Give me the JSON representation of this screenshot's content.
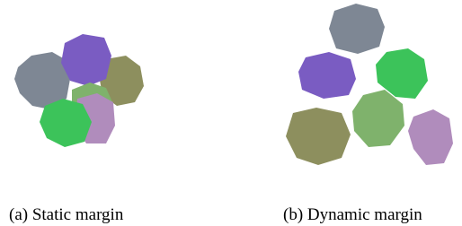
{
  "figure": {
    "subfigures": [
      {
        "caption": "(a) Static margin"
      },
      {
        "caption": "(b) Dynamic margin"
      }
    ]
  }
}
